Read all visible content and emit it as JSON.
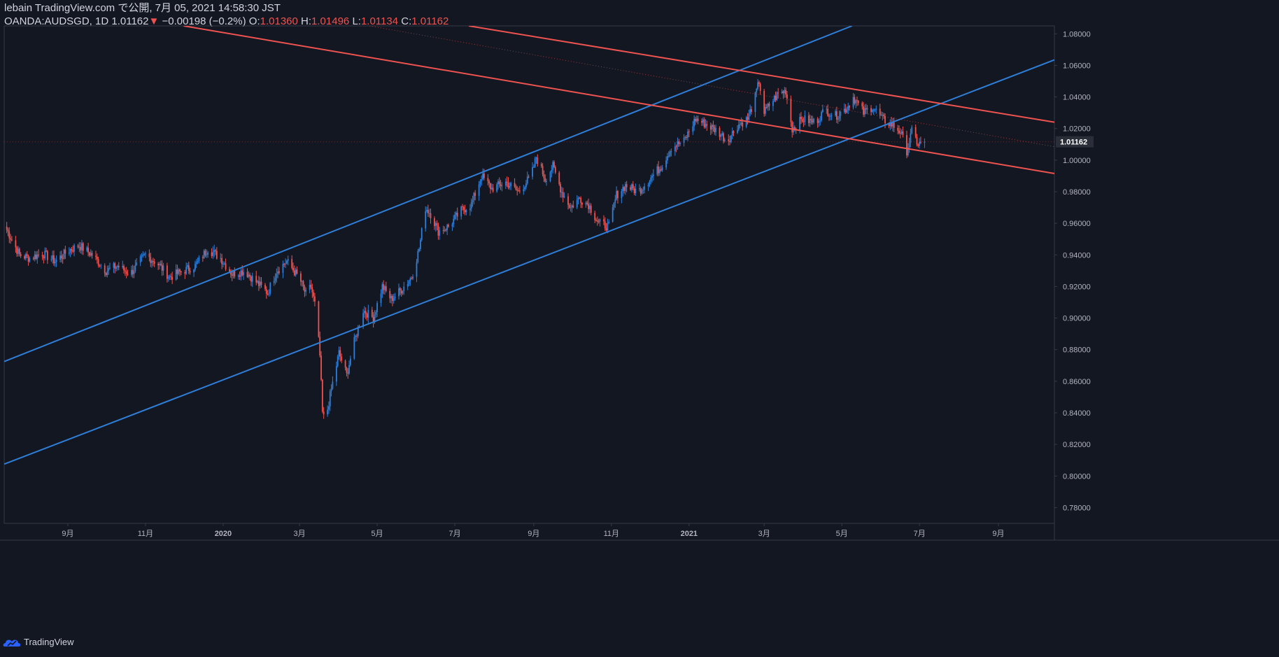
{
  "header": {
    "title": "lebain TradingView.com で公開, 7月 05, 2021 14:58:30 JST",
    "symbol": "OANDA:AUDSGD, 1D",
    "last": "1.01162",
    "change_arrow": "▼",
    "change": "−0.00198 (−0.2%)",
    "o_label": "O:",
    "o": "1.01360",
    "h_label": "H:",
    "h": "1.01496",
    "l_label": "L:",
    "l": "1.01134",
    "c_label": "C:",
    "c": "1.01162"
  },
  "footer": {
    "brand": "TradingView",
    "brand_icon": "tradingview-cloud-icon"
  },
  "colors": {
    "background": "#131722",
    "up": "#2f7ed8",
    "down": "#ef5350",
    "blue_line": "#2f7ed8",
    "red_line": "#ef5350",
    "text": "#d1d4dc",
    "grid_text": "#b2b5be"
  },
  "chart_data": {
    "type": "candlestick",
    "symbol": "OANDA:AUDSGD",
    "interval": "1D",
    "ylim": [
      0.77,
      1.085
    ],
    "yticks": [
      "1.08000",
      "1.06000",
      "1.04000",
      "1.02000",
      "1.00000",
      "0.98000",
      "0.96000",
      "0.94000",
      "0.92000",
      "0.90000",
      "0.88000",
      "0.86000",
      "0.84000",
      "0.82000",
      "0.80000",
      "0.78000"
    ],
    "ytick_values": [
      1.08,
      1.06,
      1.04,
      1.02,
      1.0,
      0.98,
      0.96,
      0.94,
      0.92,
      0.9,
      0.88,
      0.86,
      0.84,
      0.82,
      0.8,
      0.78
    ],
    "xlim": [
      "2019-07-13",
      "2021-10-15"
    ],
    "xticks": [
      {
        "label": "9月",
        "date": "2019-09-01"
      },
      {
        "label": "11月",
        "date": "2019-11-01"
      },
      {
        "label": "2020",
        "date": "2020-01-01"
      },
      {
        "label": "3月",
        "date": "2020-03-01"
      },
      {
        "label": "5月",
        "date": "2020-05-01"
      },
      {
        "label": "7月",
        "date": "2020-07-01"
      },
      {
        "label": "9月",
        "date": "2020-09-01"
      },
      {
        "label": "11月",
        "date": "2020-11-01"
      },
      {
        "label": "2021",
        "date": "2021-01-01"
      },
      {
        "label": "3月",
        "date": "2021-03-01"
      },
      {
        "label": "5月",
        "date": "2021-05-01"
      },
      {
        "label": "7月",
        "date": "2021-07-01"
      },
      {
        "label": "9月",
        "date": "2021-09-01"
      }
    ],
    "last_price": 1.01162,
    "last_price_label": "1.01162",
    "price_path": [
      [
        "2019-07-15",
        0.956
      ],
      [
        "2019-07-25",
        0.94
      ],
      [
        "2019-08-02",
        0.938
      ],
      [
        "2019-08-12",
        0.941
      ],
      [
        "2019-08-22",
        0.936
      ],
      [
        "2019-09-02",
        0.943
      ],
      [
        "2019-09-10",
        0.946
      ],
      [
        "2019-09-20",
        0.94
      ],
      [
        "2019-10-01",
        0.93
      ],
      [
        "2019-10-10",
        0.933
      ],
      [
        "2019-10-20",
        0.928
      ],
      [
        "2019-11-01",
        0.94
      ],
      [
        "2019-11-10",
        0.935
      ],
      [
        "2019-11-20",
        0.926
      ],
      [
        "2019-12-01",
        0.93
      ],
      [
        "2019-12-10",
        0.933
      ],
      [
        "2019-12-20",
        0.944
      ],
      [
        "2019-12-30",
        0.938
      ],
      [
        "2020-01-08",
        0.928
      ],
      [
        "2020-01-18",
        0.93
      ],
      [
        "2020-01-28",
        0.922
      ],
      [
        "2020-02-05",
        0.916
      ],
      [
        "2020-02-12",
        0.93
      ],
      [
        "2020-02-20",
        0.936
      ],
      [
        "2020-03-01",
        0.925
      ],
      [
        "2020-03-06",
        0.915
      ],
      [
        "2020-03-10",
        0.92
      ],
      [
        "2020-03-14",
        0.905
      ],
      [
        "2020-03-17",
        0.876
      ],
      [
        "2020-03-19",
        0.84
      ],
      [
        "2020-03-21",
        0.834
      ],
      [
        "2020-03-26",
        0.855
      ],
      [
        "2020-04-01",
        0.878
      ],
      [
        "2020-04-07",
        0.864
      ],
      [
        "2020-04-13",
        0.885
      ],
      [
        "2020-04-20",
        0.905
      ],
      [
        "2020-04-28",
        0.9
      ],
      [
        "2020-05-05",
        0.92
      ],
      [
        "2020-05-12",
        0.912
      ],
      [
        "2020-05-20",
        0.918
      ],
      [
        "2020-05-28",
        0.926
      ],
      [
        "2020-06-03",
        0.944
      ],
      [
        "2020-06-08",
        0.97
      ],
      [
        "2020-06-12",
        0.966
      ],
      [
        "2020-06-18",
        0.955
      ],
      [
        "2020-06-26",
        0.958
      ],
      [
        "2020-07-06",
        0.968
      ],
      [
        "2020-07-14",
        0.972
      ],
      [
        "2020-07-22",
        0.99
      ],
      [
        "2020-07-30",
        0.982
      ],
      [
        "2020-08-10",
        0.986
      ],
      [
        "2020-08-20",
        0.98
      ],
      [
        "2020-08-30",
        0.99
      ],
      [
        "2020-09-03",
        1.002
      ],
      [
        "2020-09-10",
        0.988
      ],
      [
        "2020-09-16",
        0.996
      ],
      [
        "2020-09-23",
        0.98
      ],
      [
        "2020-09-30",
        0.97
      ],
      [
        "2020-10-07",
        0.976
      ],
      [
        "2020-10-14",
        0.972
      ],
      [
        "2020-10-22",
        0.96
      ],
      [
        "2020-10-30",
        0.958
      ],
      [
        "2020-11-05",
        0.978
      ],
      [
        "2020-11-12",
        0.984
      ],
      [
        "2020-11-22",
        0.98
      ],
      [
        "2020-12-01",
        0.988
      ],
      [
        "2020-12-10",
        0.996
      ],
      [
        "2020-12-18",
        1.008
      ],
      [
        "2020-12-28",
        1.012
      ],
      [
        "2021-01-06",
        1.026
      ],
      [
        "2021-01-16",
        1.022
      ],
      [
        "2021-01-24",
        1.018
      ],
      [
        "2021-01-31",
        1.012
      ],
      [
        "2021-02-08",
        1.022
      ],
      [
        "2021-02-16",
        1.026
      ],
      [
        "2021-02-22",
        1.04
      ],
      [
        "2021-02-25",
        1.05
      ],
      [
        "2021-03-01",
        1.03
      ],
      [
        "2021-03-06",
        1.036
      ],
      [
        "2021-03-12",
        1.042
      ],
      [
        "2021-03-18",
        1.044
      ],
      [
        "2021-03-23",
        1.02
      ],
      [
        "2021-03-31",
        1.026
      ],
      [
        "2021-04-10",
        1.024
      ],
      [
        "2021-04-18",
        1.032
      ],
      [
        "2021-04-26",
        1.028
      ],
      [
        "2021-05-05",
        1.033
      ],
      [
        "2021-05-10",
        1.04
      ],
      [
        "2021-05-18",
        1.03
      ],
      [
        "2021-05-25",
        1.034
      ],
      [
        "2021-06-02",
        1.026
      ],
      [
        "2021-06-10",
        1.022
      ],
      [
        "2021-06-16",
        1.018
      ],
      [
        "2021-06-21",
        1.006
      ],
      [
        "2021-06-25",
        1.018
      ],
      [
        "2021-06-30",
        1.01
      ],
      [
        "2021-07-05",
        1.01162
      ]
    ],
    "trendlines": [
      {
        "color": "blue",
        "p1": [
          "2019-07-13",
          0.8725
        ],
        "p2": [
          "2021-05-09",
          1.085
        ]
      },
      {
        "color": "blue",
        "p1": [
          "2019-07-13",
          0.8075
        ],
        "p2": [
          "2021-10-15",
          1.0635
        ]
      },
      {
        "color": "red",
        "p1": [
          "2019-12-01",
          1.085
        ],
        "p2": [
          "2021-10-15",
          0.9915
        ]
      },
      {
        "color": "red",
        "p1": [
          "2020-07-12",
          1.085
        ],
        "p2": [
          "2021-10-15",
          1.024
        ]
      },
      {
        "color": "red",
        "dotted": true,
        "p1": [
          "2020-04-25",
          1.085
        ],
        "p2": [
          "2021-10-15",
          1.0085
        ]
      }
    ]
  }
}
